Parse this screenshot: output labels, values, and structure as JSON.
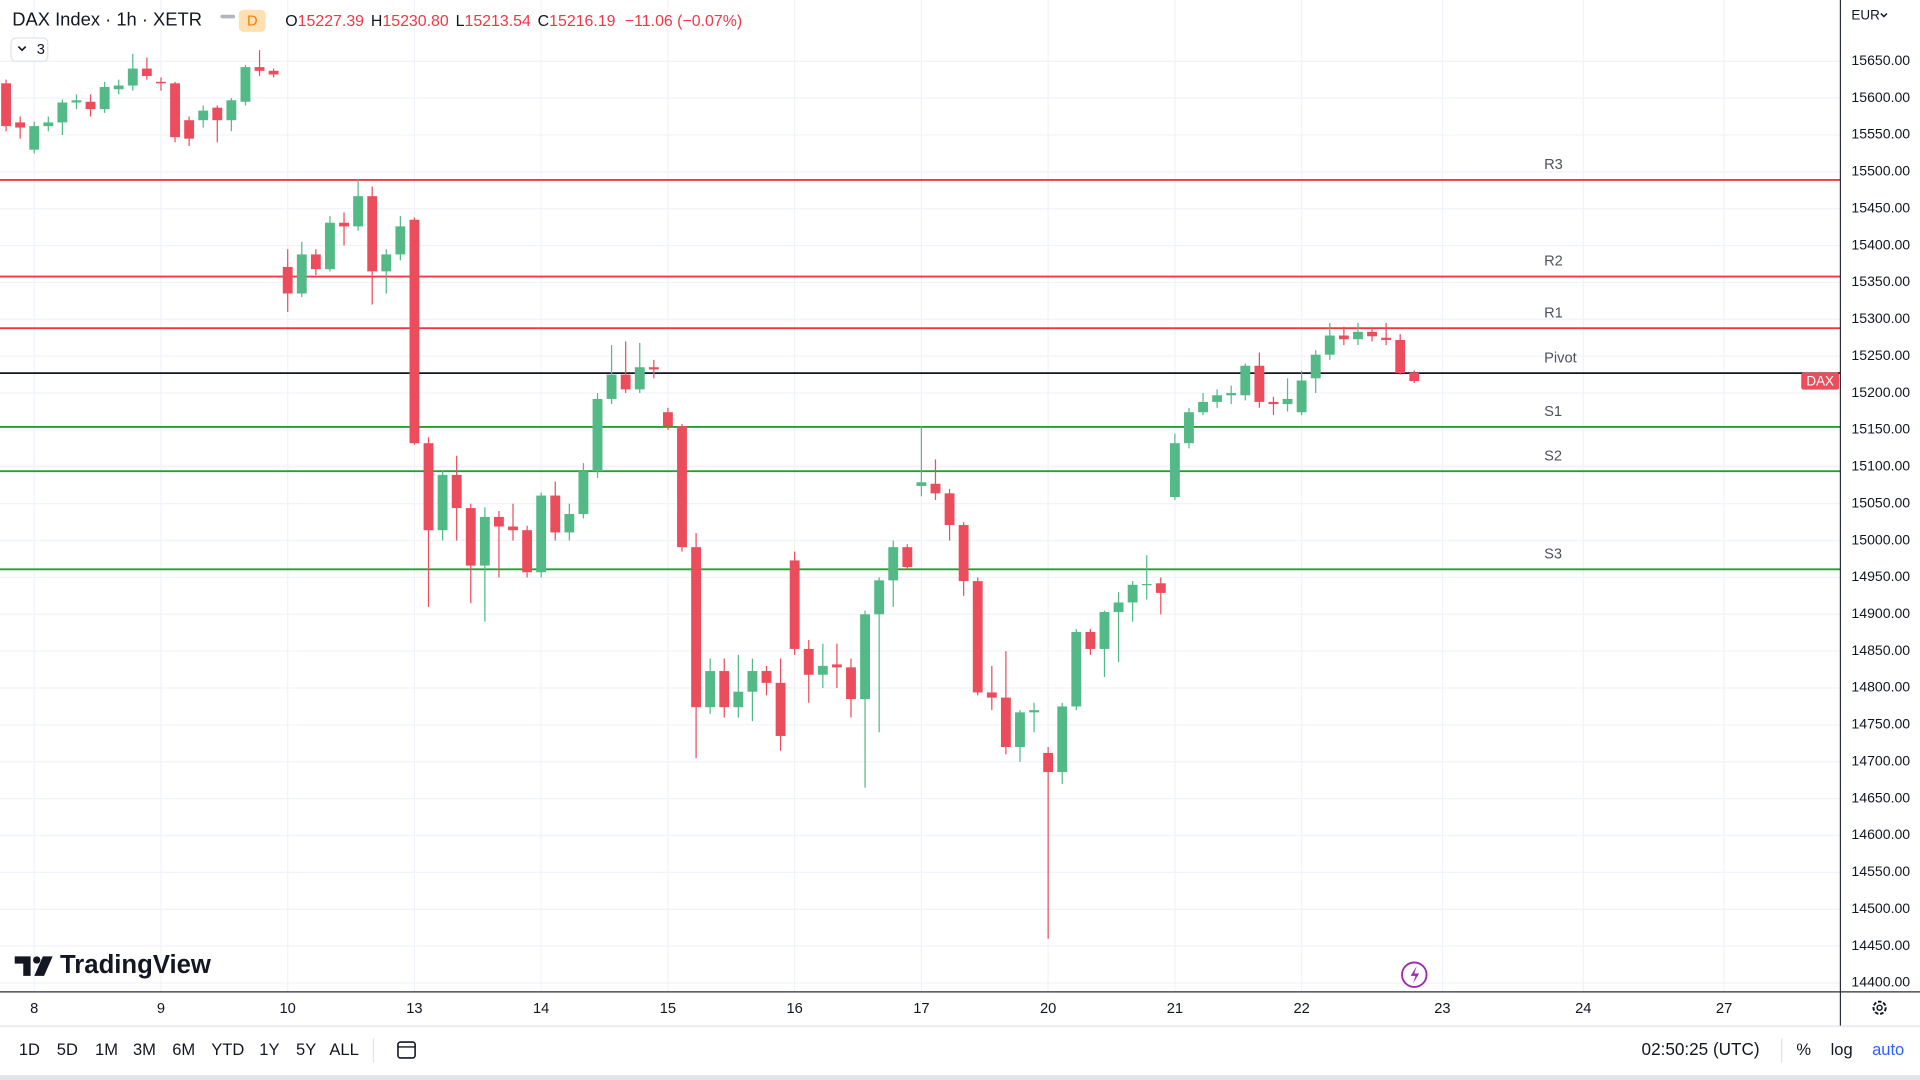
{
  "header": {
    "title": "DAX Index · 1h · XETR",
    "interval_badge": "D",
    "indicators_count": "3",
    "ohlc": [
      {
        "label": "O",
        "value": "15227.39"
      },
      {
        "label": "H",
        "value": "15230.80"
      },
      {
        "label": "L",
        "value": "15213.54"
      },
      {
        "label": "C",
        "value": "15216.19"
      }
    ],
    "change": "−11.06 (−0.07%)"
  },
  "price_axis": {
    "currency": "EUR",
    "last_price_tag": "DAX"
  },
  "brand": "TradingView",
  "toolbar": {
    "ranges": [
      "1D",
      "5D",
      "1M",
      "3M",
      "6M",
      "YTD",
      "1Y",
      "5Y",
      "ALL"
    ],
    "time": "02:50:25 (UTC)",
    "options": [
      "%",
      "log",
      "auto"
    ]
  },
  "chart_data": {
    "type": "candlestick",
    "up_color": "#53b987",
    "down_color": "#eb4d5c",
    "grid": true,
    "open": [
      15620,
      15567,
      15530,
      15562,
      15567,
      15594,
      15595,
      15585,
      15612,
      15617,
      15640,
      15622,
      15620,
      15570,
      15570,
      15587,
      15570,
      15595,
      15642,
      15637,
      15371,
      15335,
      15388,
      15368,
      15431,
      15426,
      15467,
      15365,
      15388,
      15435,
      15132,
      15014,
      15089,
      15044,
      14966,
      15032,
      15019,
      15014,
      14957,
      15061,
      15011,
      15036,
      15094,
      15192,
      15225,
      15205,
      15235,
      15174,
      15155,
      14991,
      14774,
      14823,
      14774,
      14795,
      14823,
      14807,
      14973,
      14853,
      14818,
      14832,
      14828,
      14785,
      14900,
      14946,
      14991,
      15074,
      15077,
      15064,
      15021,
      14945,
      14794,
      14787,
      14720,
      14767,
      14712,
      14686,
      14775,
      14876,
      14853,
      14903,
      14916,
      14940,
      14942,
      15059,
      15132,
      15174,
      15188,
      15197,
      15197,
      15237,
      15188,
      15185,
      15174,
      15220,
      15252,
      15278,
      15273,
      15283,
      15275,
      15272,
      15227.39
    ],
    "high": [
      15625,
      15575,
      15568,
      15575,
      15598,
      15605,
      15605,
      15622,
      15625,
      15660,
      15655,
      15628,
      15622,
      15575,
      15590,
      15590,
      15600,
      15645,
      15665,
      15640,
      15395,
      15405,
      15395,
      15440,
      15445,
      15490,
      15480,
      15395,
      15440,
      15438,
      15140,
      15095,
      15115,
      15050,
      15045,
      15040,
      15050,
      15020,
      15065,
      15080,
      15050,
      15105,
      15200,
      15265,
      15270,
      15268,
      15245,
      15180,
      15158,
      15010,
      14840,
      14840,
      14845,
      14840,
      14830,
      14840,
      14985,
      14865,
      14860,
      14860,
      14840,
      14905,
      14950,
      15000,
      14995,
      15155,
      15110,
      15070,
      15025,
      14950,
      14830,
      14850,
      14770,
      14780,
      14720,
      14780,
      14880,
      14880,
      14905,
      14930,
      14945,
      14980,
      14950,
      15145,
      15180,
      15200,
      15205,
      15210,
      15240,
      15255,
      15195,
      15220,
      15230,
      15258,
      15295,
      15290,
      15295,
      15288,
      15295,
      15280,
      15230.8
    ],
    "low": [
      15555,
      15545,
      15525,
      15555,
      15550,
      15585,
      15575,
      15580,
      15605,
      15610,
      15625,
      15610,
      15540,
      15535,
      15560,
      15540,
      15555,
      15590,
      15630,
      15628,
      15310,
      15330,
      15360,
      15365,
      15400,
      15420,
      15320,
      15335,
      15380,
      15130,
      14910,
      15000,
      15000,
      14915,
      14890,
      14950,
      15000,
      14950,
      14950,
      15000,
      15000,
      15030,
      15085,
      15185,
      15200,
      15200,
      15220,
      15150,
      14985,
      14705,
      14765,
      14760,
      14760,
      14755,
      14790,
      14715,
      14845,
      14780,
      14800,
      14800,
      14760,
      14665,
      14740,
      14910,
      14960,
      15060,
      15055,
      15000,
      14925,
      14790,
      14770,
      14710,
      14700,
      14740,
      14460,
      14670,
      14770,
      14845,
      14815,
      14835,
      14890,
      14920,
      14900,
      15055,
      15125,
      15170,
      15180,
      15185,
      15190,
      15180,
      15170,
      15175,
      15170,
      15200,
      15245,
      15265,
      15265,
      15270,
      15265,
      15225,
      15213.54
    ],
    "close": [
      15562,
      15560,
      15562,
      15567,
      15594,
      15597,
      15585,
      15615,
      15617,
      15640,
      15630,
      15620,
      15547,
      15545,
      15583,
      15570,
      15597,
      15642,
      15637,
      15632,
      15335,
      15388,
      15368,
      15431,
      15426,
      15467,
      15365,
      15388,
      15426,
      15132,
      15014,
      15089,
      15044,
      14966,
      15032,
      15019,
      15014,
      14957,
      15061,
      15011,
      15036,
      15094,
      15192,
      15225,
      15205,
      15235,
      15232,
      15155,
      14991,
      14774,
      14823,
      14774,
      14795,
      14823,
      14807,
      14735,
      14853,
      14818,
      14830,
      14828,
      14785,
      14900,
      14946,
      14991,
      14964,
      15079,
      15064,
      15021,
      14945,
      14794,
      14787,
      14720,
      14767,
      14770,
      14686,
      14775,
      14876,
      14853,
      14903,
      14916,
      14940,
      14941,
      14929,
      15132,
      15174,
      15188,
      15197,
      15200,
      15237,
      15188,
      15185,
      15192,
      15217,
      15252,
      15278,
      15273,
      15283,
      15277,
      15272,
      15227,
      15216.19
    ],
    "xlim": [
      -0.43,
      130.26
    ],
    "xticks": [
      {
        "value": 2,
        "label": "8"
      },
      {
        "value": 11,
        "label": "9"
      },
      {
        "value": 20,
        "label": "10"
      },
      {
        "value": 29,
        "label": "13"
      },
      {
        "value": 38,
        "label": "14"
      },
      {
        "value": 47,
        "label": "15"
      },
      {
        "value": 56,
        "label": "16"
      },
      {
        "value": 65,
        "label": "17"
      },
      {
        "value": 74,
        "label": "20"
      },
      {
        "value": 83,
        "label": "21"
      },
      {
        "value": 92,
        "label": "22"
      },
      {
        "value": 102,
        "label": "23"
      },
      {
        "value": 112,
        "label": "24"
      },
      {
        "value": 122,
        "label": "27"
      }
    ],
    "ylim": [
      14388,
      15733
    ],
    "yticks": [
      {
        "value": 14400,
        "label": "14400.00"
      },
      {
        "value": 14450,
        "label": "14450.00"
      },
      {
        "value": 14500,
        "label": "14500.00"
      },
      {
        "value": 14550,
        "label": "14550.00"
      },
      {
        "value": 14600,
        "label": "14600.00"
      },
      {
        "value": 14650,
        "label": "14650.00"
      },
      {
        "value": 14700,
        "label": "14700.00"
      },
      {
        "value": 14750,
        "label": "14750.00"
      },
      {
        "value": 14800,
        "label": "14800.00"
      },
      {
        "value": 14850,
        "label": "14850.00"
      },
      {
        "value": 14900,
        "label": "14900.00"
      },
      {
        "value": 14950,
        "label": "14950.00"
      },
      {
        "value": 15000,
        "label": "15000.00"
      },
      {
        "value": 15050,
        "label": "15050.00"
      },
      {
        "value": 15100,
        "label": "15100.00"
      },
      {
        "value": 15150,
        "label": "15150.00"
      },
      {
        "value": 15200,
        "label": "15200.00"
      },
      {
        "value": 15250,
        "label": "15250.00"
      },
      {
        "value": 15300,
        "label": "15300.00"
      },
      {
        "value": 15350,
        "label": "15350.00"
      },
      {
        "value": 15400,
        "label": "15400.00"
      },
      {
        "value": 15450,
        "label": "15450.00"
      },
      {
        "value": 15500,
        "label": "15500.00"
      },
      {
        "value": 15550,
        "label": "15550.00"
      },
      {
        "value": 15600,
        "label": "15600.00"
      },
      {
        "value": 15650,
        "label": "15650.00"
      }
    ],
    "levels": [
      {
        "name": "R3",
        "value": 15489,
        "color": "#f23645"
      },
      {
        "name": "R2",
        "value": 15358,
        "color": "#f23645"
      },
      {
        "name": "R1",
        "value": 15288,
        "color": "#f23645"
      },
      {
        "name": "Pivot",
        "value": 15227,
        "color": "#131722"
      },
      {
        "name": "S1",
        "value": 15154,
        "color": "#1fa32b"
      },
      {
        "name": "S2",
        "value": 15094,
        "color": "#1fa32b"
      },
      {
        "name": "S3",
        "value": 14961,
        "color": "#1fa32b"
      }
    ]
  }
}
